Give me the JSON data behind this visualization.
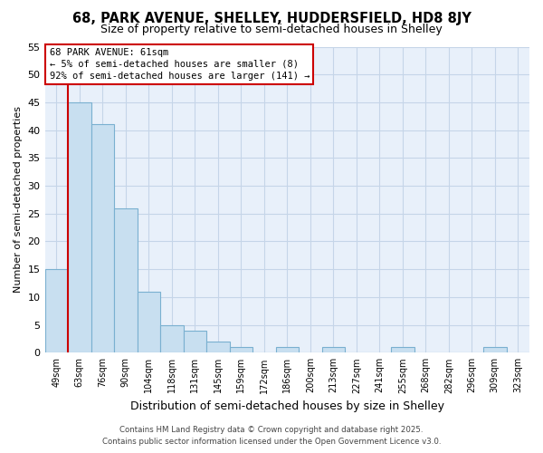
{
  "title": "68, PARK AVENUE, SHELLEY, HUDDERSFIELD, HD8 8JY",
  "subtitle": "Size of property relative to semi-detached houses in Shelley",
  "xlabel": "Distribution of semi-detached houses by size in Shelley",
  "ylabel": "Number of semi-detached properties",
  "bin_labels": [
    "49sqm",
    "63sqm",
    "76sqm",
    "90sqm",
    "104sqm",
    "118sqm",
    "131sqm",
    "145sqm",
    "159sqm",
    "172sqm",
    "186sqm",
    "200sqm",
    "213sqm",
    "227sqm",
    "241sqm",
    "255sqm",
    "268sqm",
    "282sqm",
    "296sqm",
    "309sqm",
    "323sqm"
  ],
  "bar_heights": [
    15,
    45,
    41,
    26,
    11,
    5,
    4,
    2,
    1,
    0,
    1,
    0,
    1,
    0,
    0,
    1,
    0,
    0,
    0,
    1,
    0
  ],
  "bar_color": "#c8dff0",
  "bar_edge_color": "#7ab0d0",
  "highlight_color": "#cc0000",
  "red_line_x": 0.5,
  "annotation_title": "68 PARK AVENUE: 61sqm",
  "annotation_line1": "← 5% of semi-detached houses are smaller (8)",
  "annotation_line2": "92% of semi-detached houses are larger (141) →",
  "ylim": [
    0,
    55
  ],
  "yticks": [
    0,
    5,
    10,
    15,
    20,
    25,
    30,
    35,
    40,
    45,
    50,
    55
  ],
  "footer_line1": "Contains HM Land Registry data © Crown copyright and database right 2025.",
  "footer_line2": "Contains public sector information licensed under the Open Government Licence v3.0.",
  "bg_color": "#ffffff",
  "plot_bg_color": "#e8f0fa",
  "grid_color": "#c5d5e8"
}
